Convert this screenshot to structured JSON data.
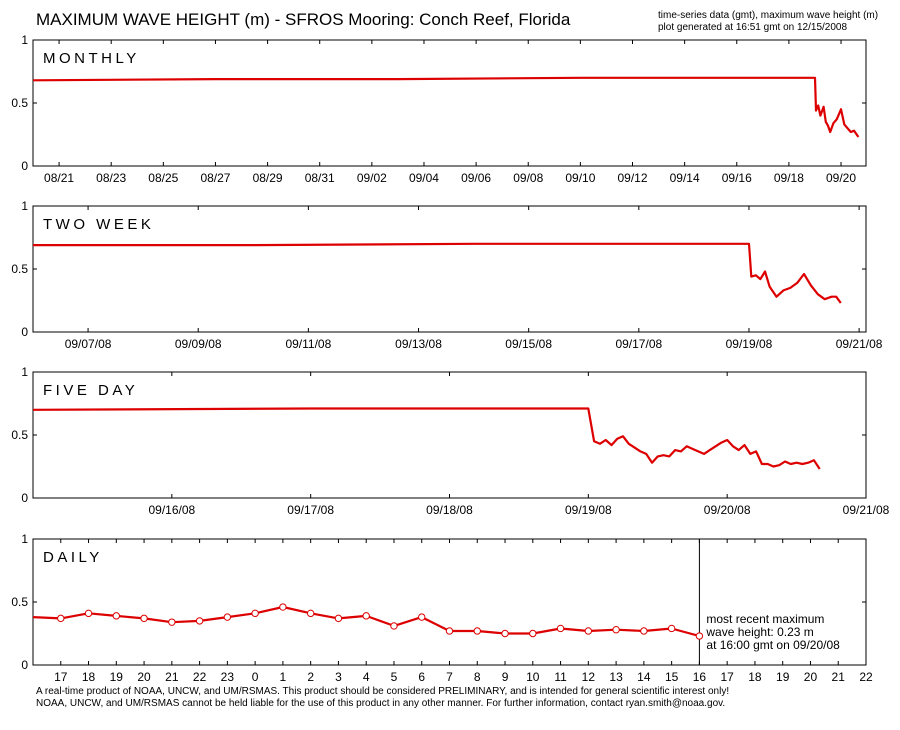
{
  "header": {
    "title": "MAXIMUM WAVE HEIGHT (m)  -  SFROS Mooring: Conch Reef, Florida",
    "meta_line1": "time-series data (gmt), maximum wave height (m)",
    "meta_line2": "plot generated at 16:51 gmt on 12/15/2008"
  },
  "footer": {
    "line1": "A real-time product of NOAA, UNCW, and UM/RSMAS. This product should be considered PRELIMINARY, and is intended for general scientific interest only!",
    "line2": "NOAA, UNCW, and UM/RSMAS cannot be held liable for the use of this product in any other manner.  For further information, contact ryan.smith@noaa.gov."
  },
  "colors": {
    "series": "#dd0000",
    "axis": "#000000",
    "marker_fill": "#ffffff"
  },
  "chart_data": [
    {
      "type": "line",
      "title": "MONTHLY",
      "ylim": [
        0,
        1
      ],
      "yticks": [
        "0",
        "0.5",
        "1"
      ],
      "x_unit": "day",
      "xlim": [
        "2008-08-20 00:00",
        "2008-09-20 23:00"
      ],
      "xtick_labels": [
        "08/21",
        "08/23",
        "08/25",
        "08/27",
        "08/29",
        "08/31",
        "09/02",
        "09/04",
        "09/06",
        "09/08",
        "09/10",
        "09/12",
        "09/14",
        "09/16",
        "09/18",
        "09/20"
      ],
      "xtick_positions": [
        "2008-08-21",
        "2008-08-23",
        "2008-08-25",
        "2008-08-27",
        "2008-08-29",
        "2008-08-31",
        "2008-09-02",
        "2008-09-04",
        "2008-09-06",
        "2008-09-08",
        "2008-09-10",
        "2008-09-12",
        "2008-09-14",
        "2008-09-16",
        "2008-09-18",
        "2008-09-20"
      ],
      "x": [
        "2008-08-20 00:00",
        "2008-08-27 00:00",
        "2008-09-03 00:00",
        "2008-09-10 00:00",
        "2008-09-17 00:00",
        "2008-09-19 00:00",
        "2008-09-19 01:00",
        "2008-09-19 03:00",
        "2008-09-19 05:00",
        "2008-09-19 08:00",
        "2008-09-19 10:00",
        "2008-09-19 12:00",
        "2008-09-19 14:00",
        "2008-09-19 17:00",
        "2008-09-19 20:00",
        "2008-09-20 00:00",
        "2008-09-20 03:00",
        "2008-09-20 06:00",
        "2008-09-20 09:00",
        "2008-09-20 12:00",
        "2008-09-20 16:00"
      ],
      "y": [
        0.68,
        0.69,
        0.69,
        0.7,
        0.7,
        0.7,
        0.44,
        0.48,
        0.4,
        0.47,
        0.35,
        0.32,
        0.27,
        0.34,
        0.37,
        0.45,
        0.33,
        0.3,
        0.27,
        0.28,
        0.23
      ]
    },
    {
      "type": "line",
      "title": "TWO WEEK",
      "ylim": [
        0,
        1
      ],
      "yticks": [
        "0",
        "0.5",
        "1"
      ],
      "x_unit": "day",
      "xlim": [
        "2008-09-06 00:00",
        "2008-09-21 03:00"
      ],
      "xtick_labels": [
        "09/07/08",
        "09/09/08",
        "09/11/08",
        "09/13/08",
        "09/15/08",
        "09/17/08",
        "09/19/08",
        "09/21/08"
      ],
      "xtick_positions": [
        "2008-09-07",
        "2008-09-09",
        "2008-09-11",
        "2008-09-13",
        "2008-09-15",
        "2008-09-17",
        "2008-09-19",
        "2008-09-21"
      ],
      "x": [
        "2008-09-06 00:00",
        "2008-09-10 00:00",
        "2008-09-14 00:00",
        "2008-09-18 00:00",
        "2008-09-19 00:00",
        "2008-09-19 01:00",
        "2008-09-19 03:00",
        "2008-09-19 05:00",
        "2008-09-19 07:00",
        "2008-09-19 09:00",
        "2008-09-19 12:00",
        "2008-09-19 15:00",
        "2008-09-19 18:00",
        "2008-09-19 21:00",
        "2008-09-20 00:00",
        "2008-09-20 03:00",
        "2008-09-20 06:00",
        "2008-09-20 09:00",
        "2008-09-20 12:00",
        "2008-09-20 14:00",
        "2008-09-20 16:00"
      ],
      "y": [
        0.69,
        0.69,
        0.7,
        0.7,
        0.7,
        0.44,
        0.45,
        0.42,
        0.48,
        0.36,
        0.28,
        0.33,
        0.35,
        0.39,
        0.46,
        0.37,
        0.3,
        0.26,
        0.28,
        0.28,
        0.23
      ]
    },
    {
      "type": "line",
      "title": "FIVE DAY",
      "ylim": [
        0,
        1
      ],
      "yticks": [
        "0",
        "0.5",
        "1"
      ],
      "x_unit": "day",
      "xlim": [
        "2008-09-15 00:00",
        "2008-09-21 00:00"
      ],
      "xtick_labels": [
        "09/16/08",
        "09/17/08",
        "09/18/08",
        "09/19/08",
        "09/20/08",
        "09/21/08"
      ],
      "xtick_positions": [
        "2008-09-16",
        "2008-09-17",
        "2008-09-18",
        "2008-09-19",
        "2008-09-20",
        "2008-09-21"
      ],
      "x": [
        "2008-09-15 00:00",
        "2008-09-17 00:00",
        "2008-09-19 00:00",
        "2008-09-19 01:00",
        "2008-09-19 02:00",
        "2008-09-19 03:00",
        "2008-09-19 04:00",
        "2008-09-19 05:00",
        "2008-09-19 06:00",
        "2008-09-19 07:00",
        "2008-09-19 08:00",
        "2008-09-19 09:00",
        "2008-09-19 10:00",
        "2008-09-19 11:00",
        "2008-09-19 12:00",
        "2008-09-19 13:00",
        "2008-09-19 14:00",
        "2008-09-19 15:00",
        "2008-09-19 16:00",
        "2008-09-19 17:00",
        "2008-09-19 18:00",
        "2008-09-19 19:00",
        "2008-09-19 20:00",
        "2008-09-19 21:00",
        "2008-09-19 22:00",
        "2008-09-19 23:00",
        "2008-09-20 00:00",
        "2008-09-20 01:00",
        "2008-09-20 02:00",
        "2008-09-20 03:00",
        "2008-09-20 04:00",
        "2008-09-20 05:00",
        "2008-09-20 06:00",
        "2008-09-20 07:00",
        "2008-09-20 08:00",
        "2008-09-20 09:00",
        "2008-09-20 10:00",
        "2008-09-20 11:00",
        "2008-09-20 12:00",
        "2008-09-20 13:00",
        "2008-09-20 14:00",
        "2008-09-20 15:00",
        "2008-09-20 16:00"
      ],
      "y": [
        0.7,
        0.71,
        0.71,
        0.45,
        0.43,
        0.46,
        0.42,
        0.47,
        0.49,
        0.43,
        0.4,
        0.37,
        0.35,
        0.28,
        0.33,
        0.34,
        0.33,
        0.38,
        0.37,
        0.41,
        0.39,
        0.37,
        0.35,
        0.38,
        0.41,
        0.44,
        0.46,
        0.41,
        0.38,
        0.42,
        0.35,
        0.37,
        0.27,
        0.27,
        0.25,
        0.26,
        0.29,
        0.27,
        0.28,
        0.27,
        0.28,
        0.3,
        0.23
      ]
    },
    {
      "type": "line",
      "title": "DAILY",
      "ylim": [
        0,
        1
      ],
      "yticks": [
        "0",
        "0.5",
        "1"
      ],
      "x_unit": "hour (gmt)",
      "xlim": [
        16,
        46
      ],
      "xtick_labels": [
        "17",
        "18",
        "19",
        "20",
        "21",
        "22",
        "23",
        "0",
        "1",
        "2",
        "3",
        "4",
        "5",
        "6",
        "7",
        "8",
        "9",
        "10",
        "11",
        "12",
        "13",
        "14",
        "15",
        "16",
        "17",
        "18",
        "19",
        "20",
        "21",
        "22"
      ],
      "xtick_positions": [
        17,
        18,
        19,
        20,
        21,
        22,
        23,
        24,
        25,
        26,
        27,
        28,
        29,
        30,
        31,
        32,
        33,
        34,
        35,
        36,
        37,
        38,
        39,
        40,
        41,
        42,
        43,
        44,
        45,
        46
      ],
      "x": [
        16,
        17,
        18,
        19,
        20,
        21,
        22,
        23,
        24,
        25,
        26,
        27,
        28,
        29,
        30,
        31,
        32,
        33,
        34,
        35,
        36,
        37,
        38,
        39,
        40
      ],
      "y": [
        0.38,
        0.37,
        0.41,
        0.39,
        0.37,
        0.34,
        0.35,
        0.38,
        0.41,
        0.46,
        0.41,
        0.37,
        0.39,
        0.31,
        0.38,
        0.27,
        0.27,
        0.25,
        0.25,
        0.29,
        0.27,
        0.28,
        0.27,
        0.29,
        0.23
      ],
      "markers_from_index": 1,
      "current_time_marker": 40,
      "annotation": [
        "most recent maximum",
        "wave height: 0.23 m",
        "at 16:00 gmt on 09/20/08"
      ]
    }
  ]
}
